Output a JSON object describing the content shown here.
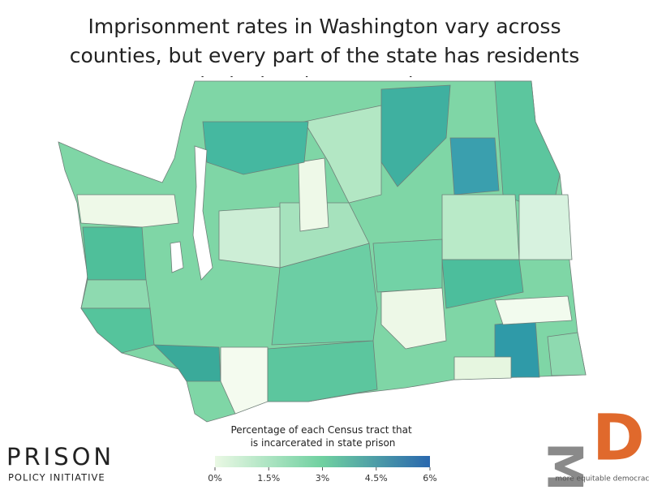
{
  "header": {
    "title": "Imprisonment rates in Washington vary across counties, but every part of the state has residents locked up in state prison"
  },
  "legend": {
    "title": "Percentage of each Census tract that is incarcerated in state prison",
    "range": [
      0,
      6
    ],
    "ticks": [
      {
        "value": 0,
        "label": "0%"
      },
      {
        "value": 1.5,
        "label": "1.5%"
      },
      {
        "value": 3,
        "label": "3%"
      },
      {
        "value": 4.5,
        "label": "4.5%"
      },
      {
        "value": 6,
        "label": "6%"
      }
    ]
  },
  "logos": {
    "left": {
      "name": "PRISON",
      "subtitle": "POLICY INITIATIVE"
    },
    "right": {
      "letters_gray": "ME",
      "letter_orange": "D",
      "tagline": "more equitable democracy"
    }
  }
}
